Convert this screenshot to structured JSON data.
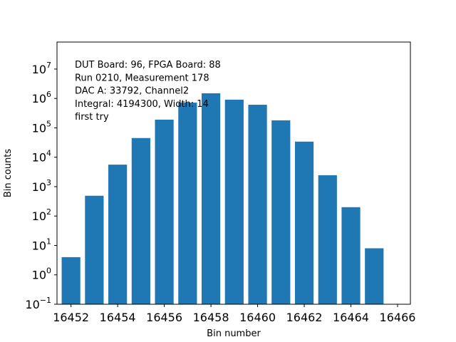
{
  "chart_data": {
    "type": "bar",
    "scale": "log",
    "color": "#1f77b4",
    "xlabel": "Bin number",
    "ylabel": "Bin counts",
    "annotation": [
      "DUT Board: 96, FPGA Board: 88",
      "Run 0210, Measurement 178",
      "DAC A: 33792, Channel2",
      "Integral: 4194300, Width: 14",
      "first try"
    ],
    "x": [
      16452,
      16453,
      16454,
      16455,
      16456,
      16457,
      16458,
      16459,
      16460,
      16461,
      16462,
      16463,
      16464,
      16465
    ],
    "values": [
      4,
      490,
      5600,
      45000,
      190000,
      720000,
      1500000,
      910000,
      610000,
      180000,
      34000,
      2450,
      200,
      8
    ],
    "bar_width": 0.8,
    "xlim": [
      16451.4,
      16466.55
    ],
    "xticks": [
      16452,
      16454,
      16456,
      16458,
      16460,
      16462,
      16464,
      16466
    ],
    "ylim": [
      0.1,
      83000000
    ],
    "yticks": [
      {
        "value": 0.1,
        "label": "10",
        "exponent": "−1"
      },
      {
        "value": 1,
        "label": "10",
        "exponent": "0"
      },
      {
        "value": 10,
        "label": "10",
        "exponent": "1"
      },
      {
        "value": 100,
        "label": "10",
        "exponent": "2"
      },
      {
        "value": 1000,
        "label": "10",
        "exponent": "3"
      },
      {
        "value": 10000,
        "label": "10",
        "exponent": "4"
      },
      {
        "value": 100000,
        "label": "10",
        "exponent": "5"
      },
      {
        "value": 1000000,
        "label": "10",
        "exponent": "6"
      },
      {
        "value": 10000000,
        "label": "10",
        "exponent": "7"
      }
    ]
  }
}
